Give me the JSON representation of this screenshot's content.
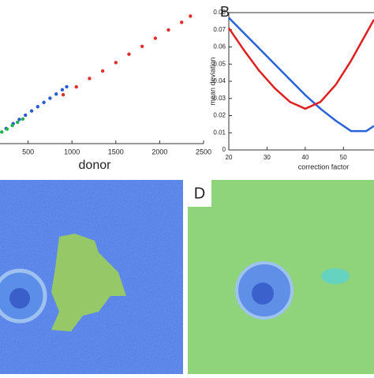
{
  "chart_data": [
    {
      "type": "scatter",
      "xlabel": "donor",
      "xlim": [
        180,
        2500
      ],
      "ylim": [
        0,
        2600
      ],
      "xticks": [
        500,
        1000,
        1500,
        2000,
        2500
      ],
      "series": [
        {
          "color": "#2a5bd7",
          "x": [
            250,
            330,
            400,
            470,
            540,
            610,
            680,
            750,
            820,
            890,
            940
          ],
          "values": [
            280,
            370,
            448,
            526,
            605,
            683,
            762,
            840,
            918,
            997,
            1053
          ]
        },
        {
          "color": "#22b14c",
          "x": [
            200,
            260,
            320,
            380,
            440
          ],
          "values": [
            215,
            270,
            335,
            395,
            455
          ]
        },
        {
          "color": "#e0302a",
          "x": [
            900,
            1050,
            1200,
            1350,
            1500,
            1650,
            1800,
            1950,
            2100,
            2250,
            2350
          ],
          "values": [
            905,
            1050,
            1205,
            1345,
            1500,
            1655,
            1800,
            1950,
            2105,
            2245,
            2360
          ]
        }
      ]
    },
    {
      "type": "line",
      "label": "B",
      "xlabel": "correction factor",
      "ylabel": "mean deviation",
      "x": [
        20,
        24,
        28,
        32,
        36,
        40,
        44,
        48,
        52,
        56,
        58
      ],
      "xlim": [
        20,
        58
      ],
      "ylim": [
        0,
        0.08
      ],
      "xticks": [
        20,
        30,
        40,
        50
      ],
      "yticks": [
        0,
        0.01,
        0.02,
        0.03,
        0.04,
        0.05,
        0.06,
        0.07,
        0.08
      ],
      "series": [
        {
          "color": "#2962d9",
          "values": [
            0.077,
            0.068,
            0.059,
            0.05,
            0.041,
            0.032,
            0.024,
            0.017,
            0.011,
            0.011,
            0.014
          ]
        },
        {
          "color": "#e02020",
          "values": [
            0.071,
            0.058,
            0.046,
            0.036,
            0.028,
            0.024,
            0.028,
            0.038,
            0.052,
            0.068,
            0.076
          ]
        }
      ]
    }
  ],
  "panels": {
    "d_label": "D"
  }
}
